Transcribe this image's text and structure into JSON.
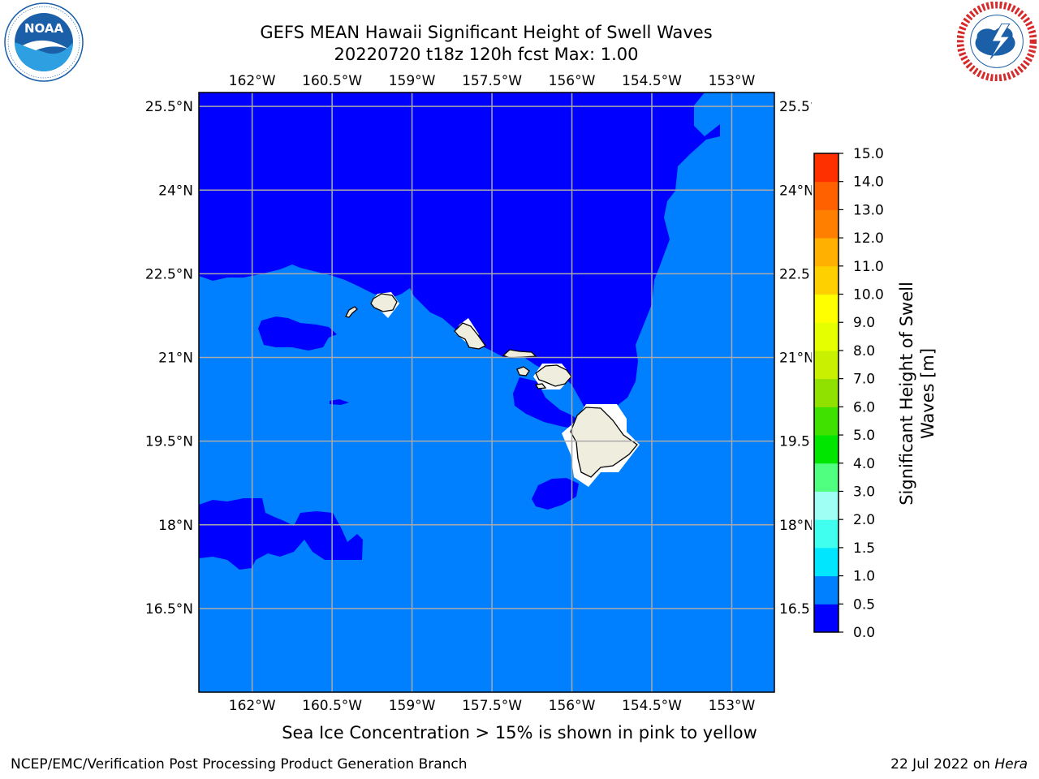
{
  "header": {
    "title_line1": "GEFS MEAN Hawaii Significant Height of Swell Waves",
    "title_line2": "20220720 t18z 120h fcst   Max: 1.00"
  },
  "logos": {
    "left": {
      "name": "NOAA",
      "text": "NOAA",
      "ring_text": "NATIONAL OCEANIC AND ATMOSPHERIC ADMINISTRATION · U.S. DEPARTMENT OF COMMERCE",
      "color": "#1b5fa8"
    },
    "right": {
      "name": "National Weather Service",
      "ring_text": "NATIONAL WEATHER SERVICE",
      "color": "#d62b2b"
    }
  },
  "map": {
    "lon_labels": [
      "162°W",
      "160.5°W",
      "159°W",
      "157.5°W",
      "156°W",
      "154.5°W",
      "153°W"
    ],
    "lat_labels": [
      "25.5°N",
      "24°N",
      "22.5°N",
      "21°N",
      "19.5°N",
      "18°N",
      "16.5°N"
    ],
    "right_lat_labels": [
      "25.5°N",
      "24°N",
      "22.5",
      "21°N",
      "19.5",
      "18°N",
      "16.5"
    ],
    "extent": {
      "lon_min": -163,
      "lon_max": -152.2,
      "lat_min": 15,
      "lat_max": 25.75
    },
    "colors": {
      "ocean_low": "#0000ff",
      "ocean_mid": "#0080ff",
      "land": "#efedde",
      "grid": "#aaaaaa"
    }
  },
  "colorbar": {
    "label": "Significant Height of Swell Waves [m]",
    "label_line1": "Significant Height of Swell",
    "label_line2": "Waves [m]",
    "ticks": [
      "0.0",
      "0.5",
      "1.0",
      "1.5",
      "2.0",
      "3.0",
      "4.0",
      "5.0",
      "6.0",
      "7.0",
      "8.0",
      "9.0",
      "10.0",
      "11.0",
      "12.0",
      "13.0",
      "14.0",
      "15.0"
    ],
    "colors": [
      "#0000ff",
      "#0080ff",
      "#00e6ff",
      "#40ffee",
      "#a0fff5",
      "#50ff80",
      "#00e600",
      "#40e000",
      "#90e000",
      "#c8f000",
      "#e6ff00",
      "#ffff00",
      "#ffd000",
      "#ffb000",
      "#ff8000",
      "#ff6000",
      "#ff3000",
      "#ff0000"
    ]
  },
  "footer": {
    "note": "Sea Ice Concentration > 15% is shown in pink to yellow",
    "org": "NCEP/EMC/Verification Post Processing Product Generation Branch",
    "date": "22 Jul 2022 on ",
    "host": "Hera"
  }
}
